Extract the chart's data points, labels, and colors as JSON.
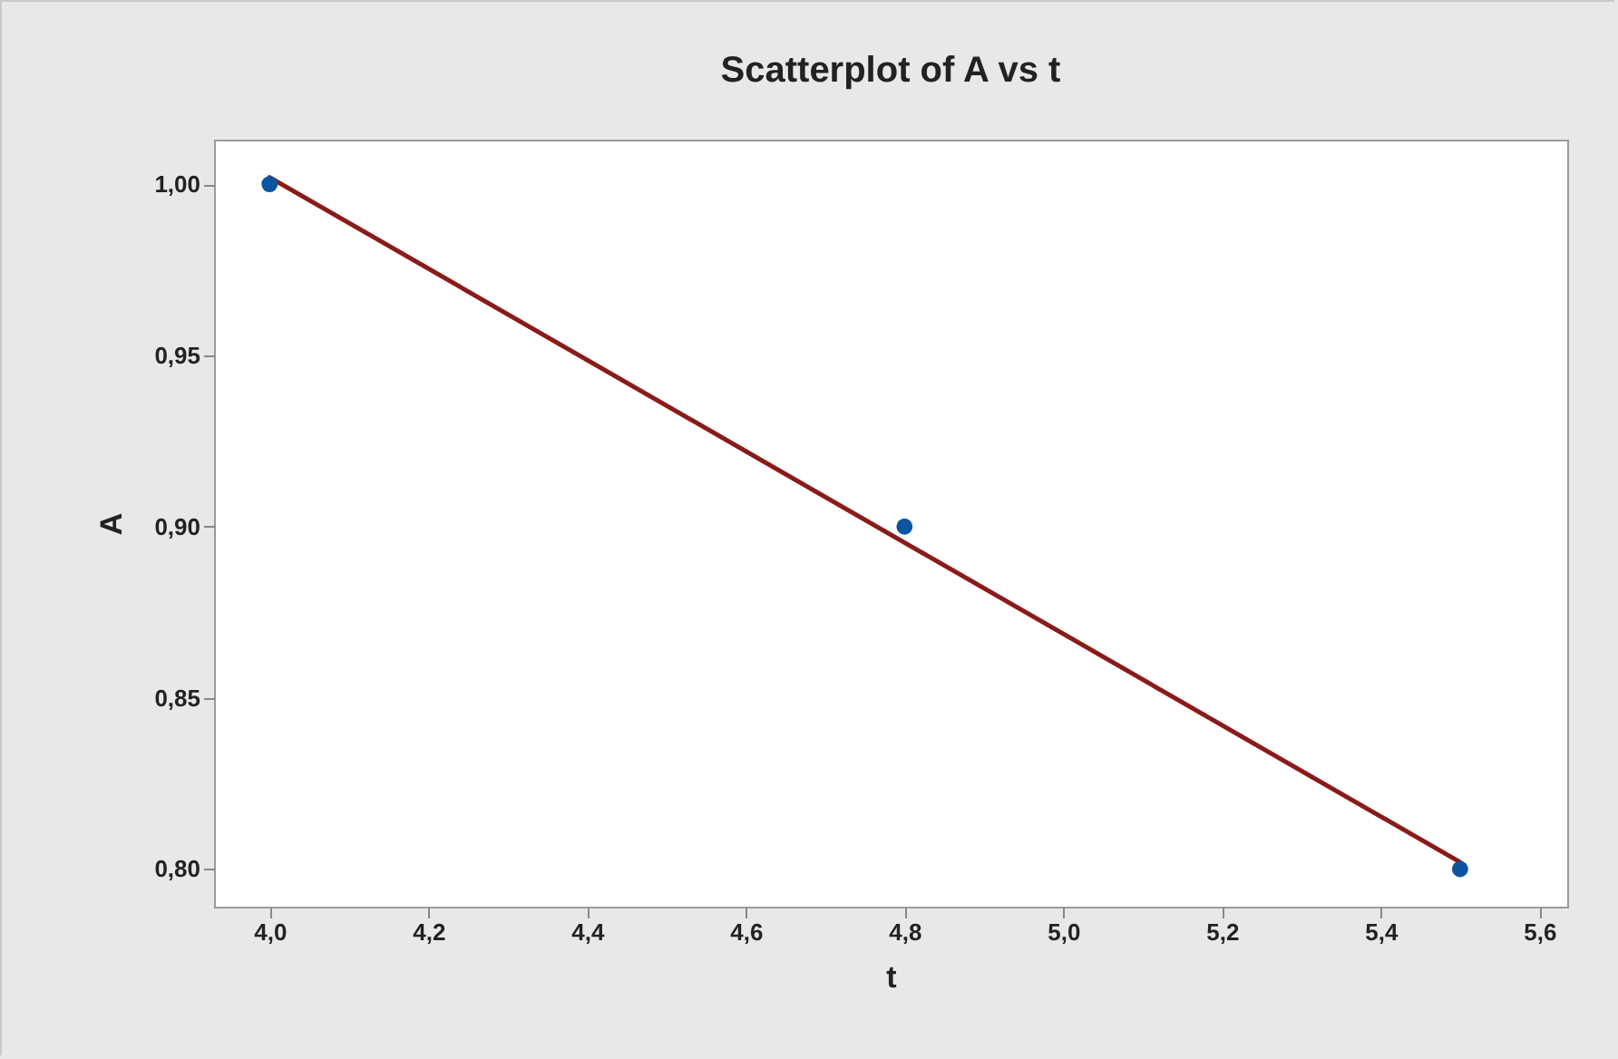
{
  "chart_data": {
    "type": "scatter",
    "title": "Scatterplot of A vs t",
    "xlabel": "t",
    "ylabel": "A",
    "xlim": [
      3.93,
      5.635
    ],
    "ylim": [
      0.789,
      1.013
    ],
    "xticks": [
      {
        "value": 4.0,
        "label": "4,0"
      },
      {
        "value": 4.2,
        "label": "4,2"
      },
      {
        "value": 4.4,
        "label": "4,4"
      },
      {
        "value": 4.6,
        "label": "4,6"
      },
      {
        "value": 4.8,
        "label": "4,8"
      },
      {
        "value": 5.0,
        "label": "5,0"
      },
      {
        "value": 5.2,
        "label": "5,2"
      },
      {
        "value": 5.4,
        "label": "5,4"
      },
      {
        "value": 5.6,
        "label": "5,6"
      }
    ],
    "yticks": [
      {
        "value": 0.8,
        "label": "0,80"
      },
      {
        "value": 0.85,
        "label": "0,85"
      },
      {
        "value": 0.9,
        "label": "0,90"
      },
      {
        "value": 0.95,
        "label": "0,95"
      },
      {
        "value": 1.0,
        "label": "1,00"
      }
    ],
    "grid": false,
    "series": [
      {
        "type": "scatter",
        "marker": "circle",
        "color": "#0a54a0",
        "x": [
          4.0,
          4.8,
          5.5
        ],
        "values": [
          1.0,
          0.9,
          0.8
        ]
      },
      {
        "type": "line",
        "marker": "none",
        "color": "#8b1a1a",
        "line_style": "solid",
        "x": [
          4.0,
          5.5
        ],
        "values": [
          1.002,
          0.802
        ]
      }
    ]
  }
}
